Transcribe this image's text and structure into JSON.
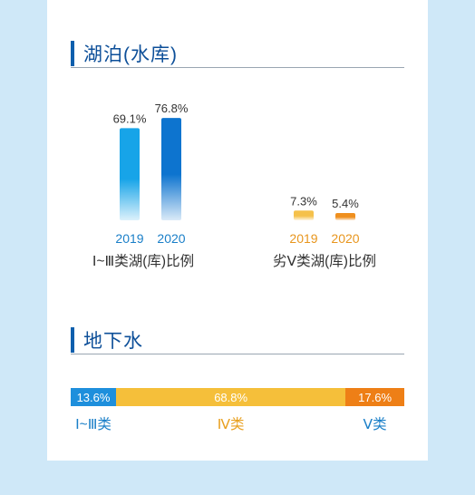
{
  "lakes": {
    "title": "湖泊(水库)",
    "groups": [
      {
        "caption": "Ⅰ~Ⅲ类湖(库)比例",
        "year_color": "#1a7fc8"
      },
      {
        "caption": "劣Ⅴ类湖(库)比例",
        "year_color": "#e8961e"
      }
    ]
  },
  "groundwater": {
    "title": "地下水",
    "segments": [
      {
        "label": "Ⅰ~Ⅲ类",
        "value": 13.6,
        "display": "13.6%",
        "color": "#1e8fdc",
        "label_color": "#1a7fc8"
      },
      {
        "label": "Ⅳ类",
        "value": 68.8,
        "display": "68.8%",
        "color": "#f5bf3a",
        "label_color": "#e8a020"
      },
      {
        "label": "Ⅴ类",
        "value": 17.6,
        "display": "17.6%",
        "color": "#ee7f16",
        "label_color": "#1a7fc8"
      }
    ]
  },
  "chart_data": [
    {
      "type": "bar",
      "title": "湖泊(水库)",
      "groups": [
        "Ⅰ~Ⅲ类湖(库)比例",
        "劣Ⅴ类湖(库)比例"
      ],
      "categories": [
        "2019",
        "2020"
      ],
      "series": [
        {
          "group": "Ⅰ~Ⅲ类湖(库)比例",
          "values": [
            69.1,
            76.8
          ],
          "labels": [
            "69.1%",
            "76.8%"
          ],
          "colors": [
            "#17a4e8",
            "#0d74cf"
          ]
        },
        {
          "group": "劣Ⅴ类湖(库)比例",
          "values": [
            7.3,
            5.4
          ],
          "labels": [
            "7.3%",
            "5.4%"
          ],
          "colors": [
            "#f5c14a",
            "#ef8f1e"
          ]
        }
      ],
      "ylim": [
        0,
        100
      ],
      "grid": false
    },
    {
      "type": "bar",
      "title": "地下水",
      "orientation": "stacked-horizontal",
      "categories": [
        "Ⅰ~Ⅲ类",
        "Ⅳ类",
        "Ⅴ类"
      ],
      "values": [
        13.6,
        68.8,
        17.6
      ],
      "labels": [
        "13.6%",
        "68.8%",
        "17.6%"
      ]
    }
  ]
}
